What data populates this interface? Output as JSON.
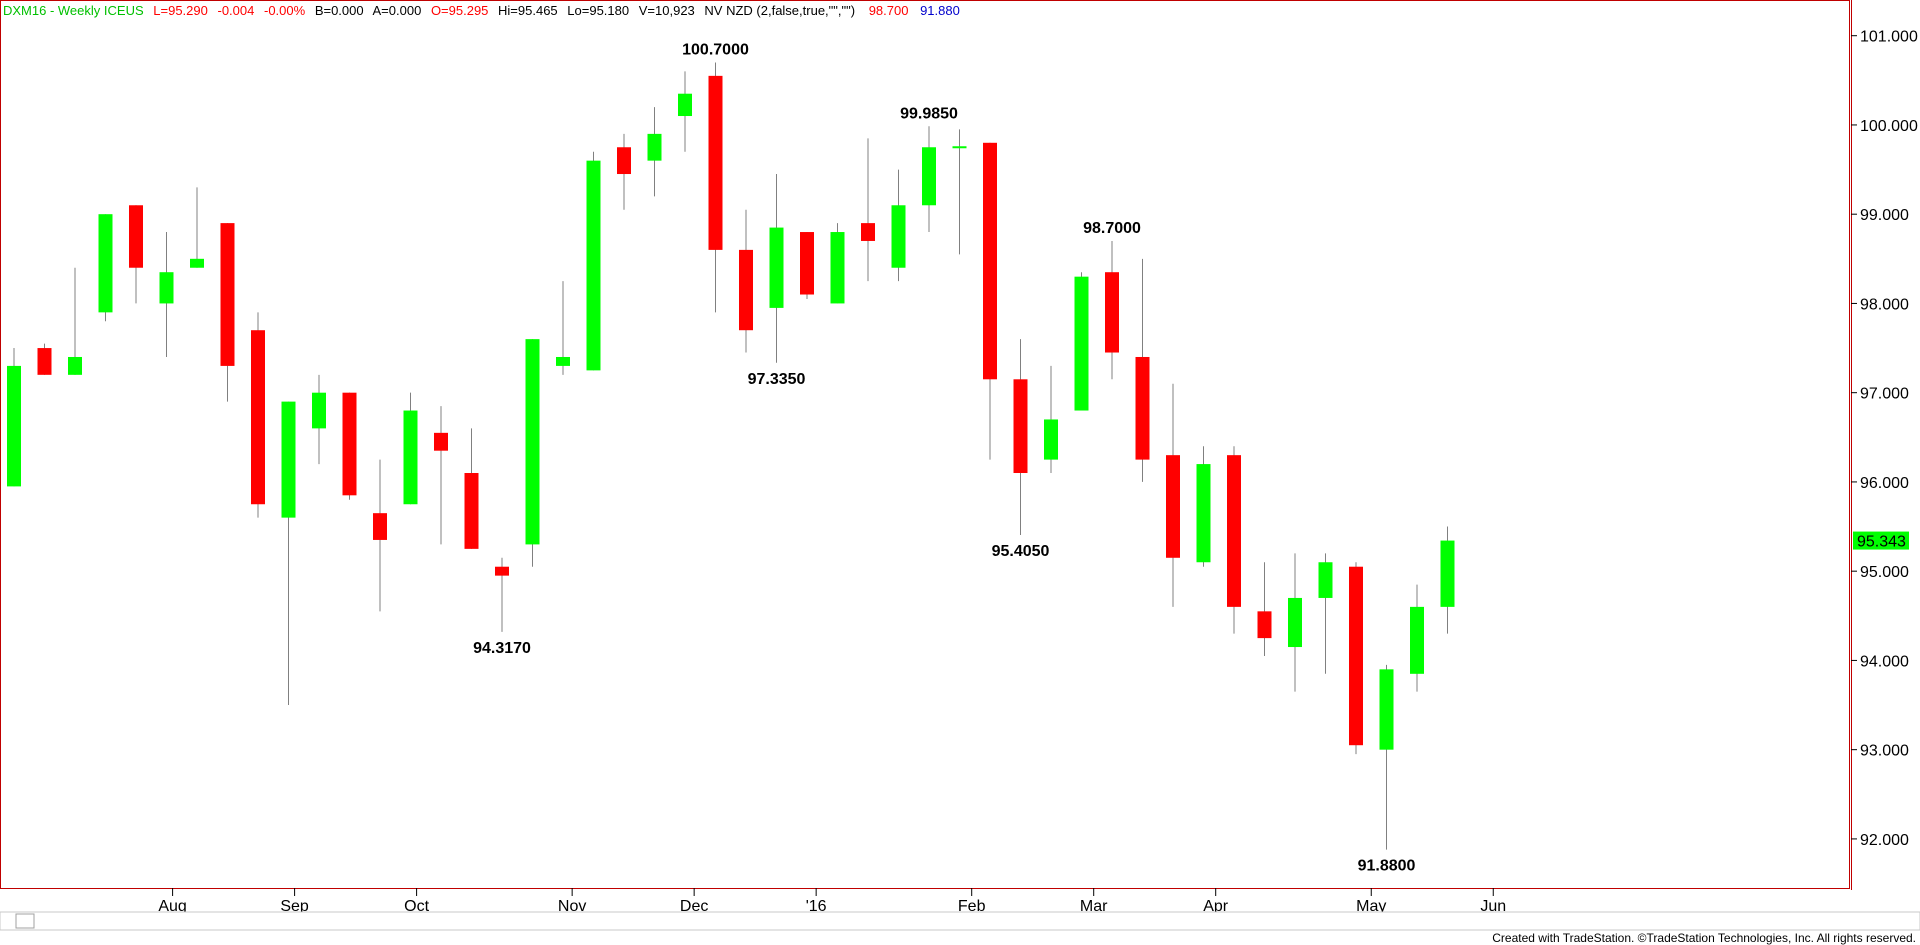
{
  "header": {
    "symbol": "DXM16 - Weekly  ICEUS",
    "last": "L=95.290",
    "change": "-0.004",
    "change_pct": "-0.00%",
    "bid": "B=0.000",
    "ask": "A=0.000",
    "open": "O=95.295",
    "high": "Hi=95.465",
    "low": "Lo=95.180",
    "volume": "V=10,923",
    "indicator": "NV NZD (2,false,true,\"\",\"\")",
    "ind_value1": "98.700",
    "ind_value2": "91.880"
  },
  "footer": {
    "credit": "Created with TradeStation. ©TradeStation Technologies, Inc. All rights reserved."
  },
  "colors": {
    "up": "#00ff00",
    "down": "#ff0000",
    "wick": "#808080",
    "frame": "#c00000",
    "symbol_text": "#00c000",
    "last_text": "#ff0000",
    "price_tag_bg": "#00ff00",
    "ind1_text": "#ff0000",
    "ind2_text": "#0000cc"
  },
  "price_tag": "95.343",
  "chart_data": {
    "type": "candlestick",
    "y_ticks": [
      "92.000",
      "93.000",
      "94.000",
      "95.000",
      "96.000",
      "97.000",
      "98.000",
      "99.000",
      "100.000",
      "101.000"
    ],
    "x_labels": [
      "Aug",
      "Sep",
      "Oct",
      "Nov",
      "Dec",
      "'16",
      "Feb",
      "Mar",
      "Apr",
      "May",
      "Jun"
    ],
    "ylim": [
      91.45,
      101.4
    ],
    "candles": [
      {
        "o": 95.95,
        "h": 97.5,
        "l": 95.95,
        "c": 97.3
      },
      {
        "o": 97.5,
        "h": 97.55,
        "l": 97.2,
        "c": 97.2
      },
      {
        "o": 97.2,
        "h": 98.4,
        "l": 97.2,
        "c": 97.4
      },
      {
        "o": 97.9,
        "h": 99.0,
        "l": 97.8,
        "c": 99.0
      },
      {
        "o": 99.1,
        "h": 99.1,
        "l": 98.0,
        "c": 98.4
      },
      {
        "o": 98.0,
        "h": 98.8,
        "l": 97.4,
        "c": 98.35
      },
      {
        "o": 98.4,
        "h": 99.3,
        "l": 98.4,
        "c": 98.5
      },
      {
        "o": 98.9,
        "h": 98.9,
        "l": 96.9,
        "c": 97.3
      },
      {
        "o": 97.7,
        "h": 97.9,
        "l": 95.6,
        "c": 95.75
      },
      {
        "o": 95.6,
        "h": 96.9,
        "l": 93.5,
        "c": 96.9
      },
      {
        "o": 96.6,
        "h": 97.2,
        "l": 96.2,
        "c": 97.0
      },
      {
        "o": 97.0,
        "h": 97.0,
        "l": 95.8,
        "c": 95.85
      },
      {
        "o": 95.65,
        "h": 96.25,
        "l": 94.55,
        "c": 95.35
      },
      {
        "o": 95.75,
        "h": 97.0,
        "l": 95.75,
        "c": 96.8
      },
      {
        "o": 96.55,
        "h": 96.85,
        "l": 95.3,
        "c": 96.35
      },
      {
        "o": 96.1,
        "h": 96.6,
        "l": 95.25,
        "c": 95.25
      },
      {
        "o": 95.05,
        "h": 95.15,
        "l": 94.32,
        "c": 94.95
      },
      {
        "o": 95.3,
        "h": 97.6,
        "l": 95.05,
        "c": 97.6
      },
      {
        "o": 97.3,
        "h": 98.25,
        "l": 97.2,
        "c": 97.4
      },
      {
        "o": 97.25,
        "h": 99.7,
        "l": 97.25,
        "c": 99.6
      },
      {
        "o": 99.75,
        "h": 99.9,
        "l": 99.05,
        "c": 99.45
      },
      {
        "o": 99.6,
        "h": 100.2,
        "l": 99.2,
        "c": 99.9
      },
      {
        "o": 100.1,
        "h": 100.6,
        "l": 99.7,
        "c": 100.35
      },
      {
        "o": 100.55,
        "h": 100.7,
        "l": 97.9,
        "c": 98.6
      },
      {
        "o": 98.6,
        "h": 99.05,
        "l": 97.45,
        "c": 97.7
      },
      {
        "o": 97.95,
        "h": 99.45,
        "l": 97.335,
        "c": 98.85
      },
      {
        "o": 98.8,
        "h": 98.8,
        "l": 98.05,
        "c": 98.1
      },
      {
        "o": 98.0,
        "h": 98.9,
        "l": 98.0,
        "c": 98.8
      },
      {
        "o": 98.9,
        "h": 99.85,
        "l": 98.25,
        "c": 98.7
      },
      {
        "o": 98.4,
        "h": 99.5,
        "l": 98.25,
        "c": 99.1
      },
      {
        "o": 99.1,
        "h": 99.985,
        "l": 98.8,
        "c": 99.75
      },
      {
        "o": 99.75,
        "h": 99.95,
        "l": 98.55,
        "c": 99.75
      },
      {
        "o": 99.8,
        "h": 99.8,
        "l": 96.25,
        "c": 97.15
      },
      {
        "o": 97.15,
        "h": 97.6,
        "l": 95.405,
        "c": 96.1
      },
      {
        "o": 96.25,
        "h": 97.3,
        "l": 96.1,
        "c": 96.7
      },
      {
        "o": 96.8,
        "h": 98.35,
        "l": 96.8,
        "c": 98.3
      },
      {
        "o": 98.35,
        "h": 98.7,
        "l": 97.15,
        "c": 97.45
      },
      {
        "o": 97.4,
        "h": 98.5,
        "l": 96.0,
        "c": 96.25
      },
      {
        "o": 96.3,
        "h": 97.1,
        "l": 94.6,
        "c": 95.15
      },
      {
        "o": 95.1,
        "h": 96.4,
        "l": 95.05,
        "c": 96.2
      },
      {
        "o": 96.3,
        "h": 96.4,
        "l": 94.3,
        "c": 94.6
      },
      {
        "o": 94.55,
        "h": 95.1,
        "l": 94.05,
        "c": 94.25
      },
      {
        "o": 94.15,
        "h": 95.2,
        "l": 93.65,
        "c": 94.7
      },
      {
        "o": 94.7,
        "h": 95.2,
        "l": 93.85,
        "c": 95.1
      },
      {
        "o": 95.05,
        "h": 95.1,
        "l": 92.95,
        "c": 93.05
      },
      {
        "o": 93.0,
        "h": 93.95,
        "l": 91.88,
        "c": 93.9
      },
      {
        "o": 93.85,
        "h": 94.85,
        "l": 93.65,
        "c": 94.6
      },
      {
        "o": 94.6,
        "h": 95.5,
        "l": 94.3,
        "c": 95.343
      }
    ],
    "x_label_positions": [
      5.2,
      9.2,
      13.2,
      18.3,
      22.3,
      26.3,
      31.4,
      35.4,
      39.4,
      44.5,
      48.5
    ],
    "annotations": [
      {
        "text": "100.7000",
        "candle": 23,
        "value": 100.7,
        "pos": "above"
      },
      {
        "text": "94.3170",
        "candle": 16,
        "value": 94.317,
        "pos": "below"
      },
      {
        "text": "97.3350",
        "candle": 25,
        "value": 97.335,
        "pos": "below"
      },
      {
        "text": "99.9850",
        "candle": 30,
        "value": 99.985,
        "pos": "above"
      },
      {
        "text": "95.4050",
        "candle": 33,
        "value": 95.405,
        "pos": "below"
      },
      {
        "text": "98.7000",
        "candle": 36,
        "value": 98.7,
        "pos": "above"
      },
      {
        "text": "91.8800",
        "candle": 45,
        "value": 91.88,
        "pos": "below"
      }
    ]
  }
}
